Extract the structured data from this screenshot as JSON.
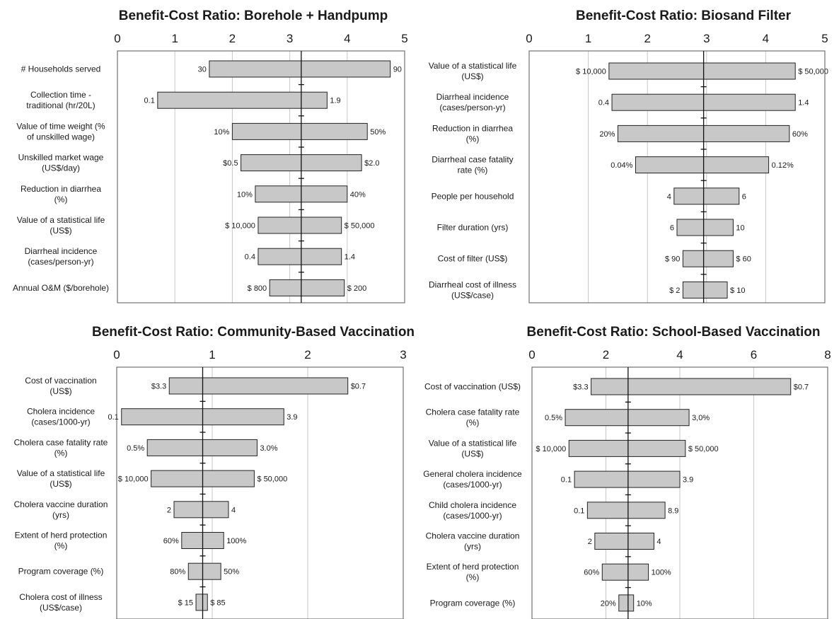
{
  "chart_data": [
    {
      "type": "bar",
      "orientation": "horizontal-tornado",
      "title": "Benefit-Cost Ratio: Borehole + Handpump",
      "xlim": [
        0,
        5
      ],
      "xticks": [
        "0",
        "1",
        "2",
        "3",
        "4",
        "5"
      ],
      "base_value": 3.2,
      "grid": "vertical",
      "bars": [
        {
          "label": [
            "# Households served"
          ],
          "low": 1.6,
          "high": 4.75,
          "left_label": "30",
          "right_label": "90"
        },
        {
          "label": [
            "Collection time -",
            "traditional (hr/20L)"
          ],
          "low": 0.7,
          "high": 3.65,
          "left_label": "0.1",
          "right_label": "1.9"
        },
        {
          "label": [
            "Value of time weight (%",
            "of unskilled wage)"
          ],
          "low": 2.0,
          "high": 4.35,
          "left_label": "10%",
          "right_label": "50%"
        },
        {
          "label": [
            "Unskilled market wage",
            "(US$/day)"
          ],
          "low": 2.15,
          "high": 4.25,
          "left_label": "$0.5",
          "right_label": "$2.0"
        },
        {
          "label": [
            "Reduction in diarrhea",
            "(%)"
          ],
          "low": 2.4,
          "high": 4.0,
          "left_label": "10%",
          "right_label": "40%"
        },
        {
          "label": [
            "Value of a statistical life",
            "(US$)"
          ],
          "low": 2.45,
          "high": 3.9,
          "left_label": "$ 10,000",
          "right_label": "$ 50,000"
        },
        {
          "label": [
            "Diarrheal incidence",
            "(cases/person-yr)"
          ],
          "low": 2.45,
          "high": 3.9,
          "left_label": "0.4",
          "right_label": "1.4"
        },
        {
          "label": [
            "Annual O&M ($/borehole)"
          ],
          "low": 2.65,
          "high": 3.95,
          "left_label": "$ 800",
          "right_label": "$ 200"
        }
      ]
    },
    {
      "type": "bar",
      "orientation": "horizontal-tornado",
      "title": "Benefit-Cost Ratio: Biosand Filter",
      "xlim": [
        0,
        5
      ],
      "xticks": [
        "0",
        "1",
        "2",
        "3",
        "4",
        "5"
      ],
      "base_value": 2.95,
      "grid": "vertical",
      "bars": [
        {
          "label": [
            "Value of a statistical life",
            "(US$)"
          ],
          "low": 1.35,
          "high": 4.5,
          "left_label": "$ 10,000",
          "right_label": "$ 50,000"
        },
        {
          "label": [
            "Diarrheal incidence",
            "(cases/person-yr)"
          ],
          "low": 1.4,
          "high": 4.5,
          "left_label": "0.4",
          "right_label": "1.4"
        },
        {
          "label": [
            "Reduction in diarrhea",
            "(%)"
          ],
          "low": 1.5,
          "high": 4.4,
          "left_label": "20%",
          "right_label": "60%"
        },
        {
          "label": [
            "Diarrheal case fatality",
            "rate (%)"
          ],
          "low": 1.8,
          "high": 4.05,
          "left_label": "0.04%",
          "right_label": "0.12%"
        },
        {
          "label": [
            "People per household"
          ],
          "low": 2.45,
          "high": 3.55,
          "left_label": "4",
          "right_label": "6"
        },
        {
          "label": [
            "Filter duration (yrs)"
          ],
          "low": 2.5,
          "high": 3.45,
          "left_label": "6",
          "right_label": "10"
        },
        {
          "label": [
            "Cost of filter (US$)"
          ],
          "low": 2.6,
          "high": 3.45,
          "left_label": "$ 90",
          "right_label": "$ 60"
        },
        {
          "label": [
            "Diarrheal cost of illness",
            "(US$/case)"
          ],
          "low": 2.6,
          "high": 3.35,
          "left_label": "$ 2",
          "right_label": "$ 10"
        }
      ]
    },
    {
      "type": "bar",
      "orientation": "horizontal-tornado",
      "title": "Benefit-Cost Ratio: Community-Based Vaccination",
      "xlim": [
        0,
        3
      ],
      "xticks": [
        "0",
        "1",
        "2",
        "3"
      ],
      "base_value": 0.9,
      "grid": "vertical",
      "bars": [
        {
          "label": [
            "Cost of vaccination",
            "(US$)"
          ],
          "low": 0.55,
          "high": 2.42,
          "left_label": "$3.3",
          "right_label": "$0.7"
        },
        {
          "label": [
            "Cholera incidence",
            "(cases/1000-yr)"
          ],
          "low": 0.05,
          "high": 1.75,
          "left_label": "0.1",
          "right_label": "3.9"
        },
        {
          "label": [
            "Cholera case fatality rate",
            "(%)"
          ],
          "low": 0.32,
          "high": 1.47,
          "left_label": "0.5%",
          "right_label": "3.0%"
        },
        {
          "label": [
            "Value of a statistical life",
            "(US$)"
          ],
          "low": 0.36,
          "high": 1.44,
          "left_label": "$ 10,000",
          "right_label": "$ 50,000"
        },
        {
          "label": [
            "Cholera vaccine duration",
            "(yrs)"
          ],
          "low": 0.6,
          "high": 1.17,
          "left_label": "2",
          "right_label": "4"
        },
        {
          "label": [
            "Extent of herd protection",
            "(%)"
          ],
          "low": 0.68,
          "high": 1.12,
          "left_label": "60%",
          "right_label": "100%"
        },
        {
          "label": [
            "Program coverage (%)"
          ],
          "low": 0.75,
          "high": 1.09,
          "left_label": "80%",
          "right_label": "50%"
        },
        {
          "label": [
            "Cholera cost of illness",
            "(US$/case)"
          ],
          "low": 0.83,
          "high": 0.95,
          "left_label": "$ 15",
          "right_label": "$ 85"
        }
      ]
    },
    {
      "type": "bar",
      "orientation": "horizontal-tornado",
      "title": "Benefit-Cost Ratio: School-Based Vaccination",
      "xlim": [
        0,
        8
      ],
      "xticks": [
        "0",
        "2",
        "4",
        "6",
        "8"
      ],
      "base_value": 2.6,
      "grid": "vertical",
      "bars": [
        {
          "label": [
            "Cost of vaccination (US$)"
          ],
          "low": 1.6,
          "high": 7.0,
          "left_label": "$3.3",
          "right_label": "$0.7"
        },
        {
          "label": [
            "Cholera case fatality rate",
            "(%)"
          ],
          "low": 0.9,
          "high": 4.25,
          "left_label": "0.5%",
          "right_label": "3,0%"
        },
        {
          "label": [
            "Value of a statistical life",
            "(US$)"
          ],
          "low": 1.0,
          "high": 4.15,
          "left_label": "$ 10,000",
          "right_label": "$ 50,000"
        },
        {
          "label": [
            "General cholera incidence",
            "(cases/1000-yr)"
          ],
          "low": 1.15,
          "high": 4.0,
          "left_label": "0.1",
          "right_label": "3.9"
        },
        {
          "label": [
            "Child cholera incidence",
            "(cases/1000-yr)"
          ],
          "low": 1.5,
          "high": 3.6,
          "left_label": "0.1",
          "right_label": "8.9"
        },
        {
          "label": [
            "Cholera vaccine duration",
            "(yrs)"
          ],
          "low": 1.7,
          "high": 3.3,
          "left_label": "2",
          "right_label": "4"
        },
        {
          "label": [
            "Extent of herd protection",
            "(%)"
          ],
          "low": 1.9,
          "high": 3.15,
          "left_label": "60%",
          "right_label": "100%"
        },
        {
          "label": [
            "Program coverage (%)"
          ],
          "low": 2.35,
          "high": 2.75,
          "left_label": "20%",
          "right_label": "10%"
        }
      ]
    }
  ]
}
